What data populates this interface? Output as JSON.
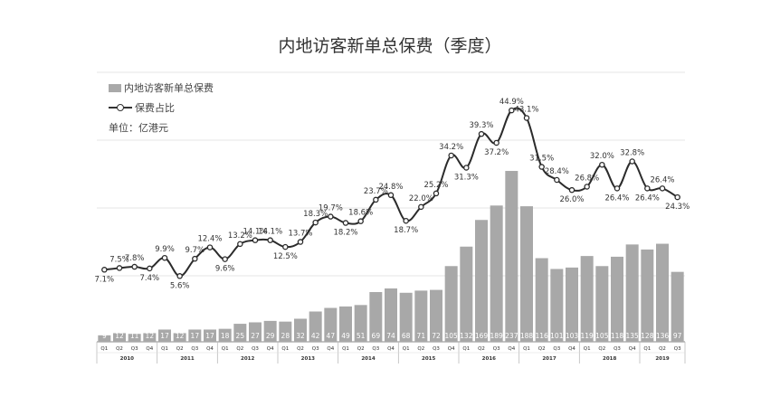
{
  "chart_data": {
    "title": "内地访客新单总保费（季度）",
    "legend": [
      {
        "label": "内地访客新单总保费",
        "kind": "bar"
      },
      {
        "label": "保费占比",
        "kind": "line"
      }
    ],
    "unit_label": "单位：亿港元",
    "type": "bar",
    "categories": [
      "Q1",
      "Q2",
      "Q3",
      "Q4",
      "Q1",
      "Q2",
      "Q3",
      "Q4",
      "Q1",
      "Q2",
      "Q3",
      "Q4",
      "Q1",
      "Q2",
      "Q3",
      "Q4",
      "Q1",
      "Q2",
      "Q3",
      "Q4",
      "Q1",
      "Q2",
      "Q3",
      "Q4",
      "Q1",
      "Q2",
      "Q3",
      "Q4",
      "Q1",
      "Q2",
      "Q3",
      "Q4",
      "Q1",
      "Q2",
      "Q3",
      "Q4",
      "Q1",
      "Q2",
      "Q3"
    ],
    "years": [
      {
        "label": "2010",
        "start": 0,
        "count": 4
      },
      {
        "label": "2011",
        "start": 4,
        "count": 4
      },
      {
        "label": "2012",
        "start": 8,
        "count": 4
      },
      {
        "label": "2013",
        "start": 12,
        "count": 4
      },
      {
        "label": "2014",
        "start": 16,
        "count": 4
      },
      {
        "label": "2015",
        "start": 20,
        "count": 4
      },
      {
        "label": "2016",
        "start": 24,
        "count": 4
      },
      {
        "label": "2017",
        "start": 28,
        "count": 4
      },
      {
        "label": "2018",
        "start": 32,
        "count": 4
      },
      {
        "label": "2019",
        "start": 36,
        "count": 3
      }
    ],
    "series": [
      {
        "name": "内地访客新单总保费",
        "type": "bar",
        "values": [
          9,
          12,
          11,
          12,
          17,
          12,
          17,
          17,
          18,
          25,
          27,
          29,
          28,
          32,
          42,
          47,
          49,
          51,
          69,
          74,
          68,
          71,
          72,
          105,
          132,
          169,
          189,
          237,
          188,
          116,
          101,
          103,
          119,
          105,
          118,
          135,
          128,
          136,
          97
        ]
      },
      {
        "name": "保费占比",
        "type": "line",
        "unit": "%",
        "values": [
          7.1,
          7.5,
          7.8,
          7.4,
          9.9,
          5.6,
          9.7,
          12.4,
          9.6,
          13.2,
          14.1,
          14.1,
          12.5,
          13.7,
          18.3,
          19.7,
          18.2,
          18.6,
          23.7,
          24.8,
          18.7,
          22.0,
          25.2,
          34.2,
          31.3,
          39.3,
          37.2,
          44.9,
          43.1,
          31.5,
          28.4,
          26.0,
          26.8,
          32.0,
          26.4,
          32.8,
          26.4,
          26.4,
          24.3
        ]
      }
    ],
    "ylim_bar": [
      0,
      380
    ],
    "ylim_line": [
      -10,
      55
    ],
    "grid": true
  }
}
